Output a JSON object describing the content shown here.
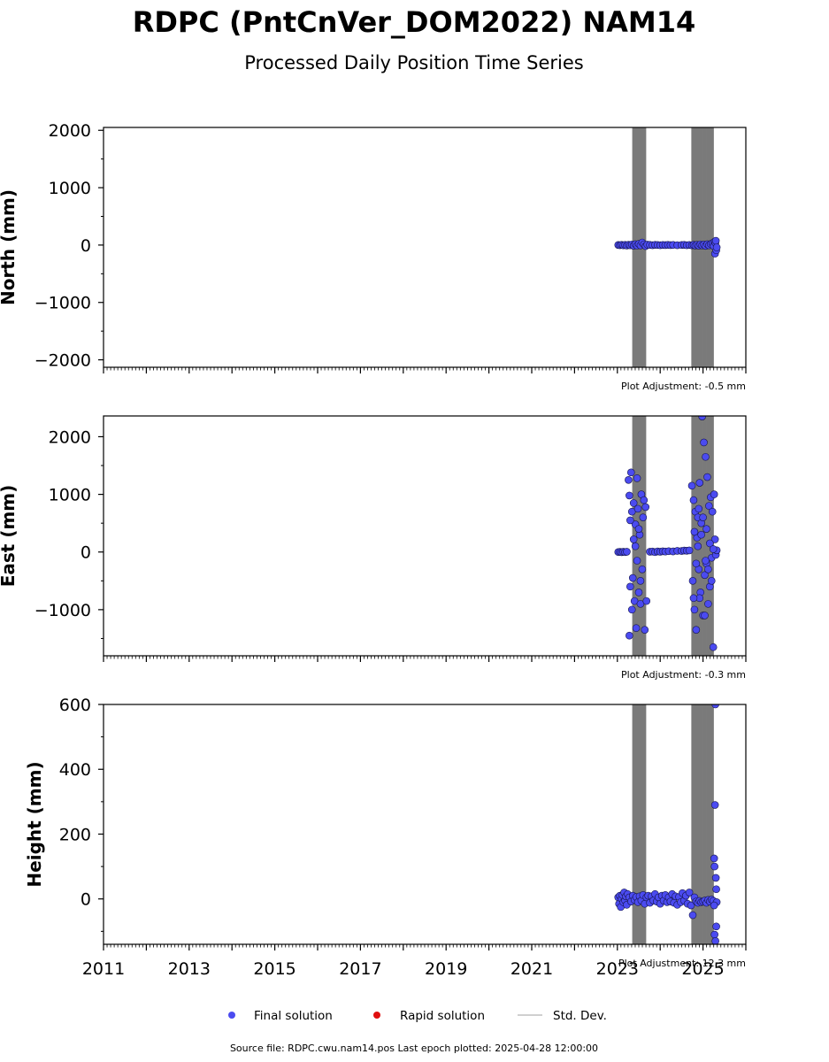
{
  "title": "RDPC (PntCnVer_DOM2022) NAM14",
  "subtitle": "Processed Daily Position Time Series",
  "source_text": "Source file: RDPC.cwu.nam14.pos  Last epoch plotted: 2025-04-28 12:00:00",
  "legend": {
    "final": "Final solution",
    "rapid": "Rapid solution",
    "std": "Std. Dev."
  },
  "colors": {
    "final": "#4b4bf0",
    "rapid": "#e01010",
    "std": "#d0d0d0",
    "band": "#6a6a6a"
  },
  "chart_data": {
    "type": "scatter",
    "xlim": [
      2011.0,
      2026.0
    ],
    "x_ticks": [
      2011,
      2013,
      2015,
      2017,
      2019,
      2021,
      2023,
      2025
    ],
    "x_tick_labels": [
      "2011",
      "2013",
      "2015",
      "2017",
      "2019",
      "2021",
      "2023",
      "2025"
    ],
    "panels": [
      {
        "id": "north",
        "ylabel": "North (mm)",
        "ylim": [
          -2130,
          2050
        ],
        "yticks": [
          -2000,
          -1000,
          0,
          1000,
          2000
        ],
        "ytick_labels": [
          "−2000",
          "−1000",
          "0",
          "1000",
          "2000"
        ],
        "adjustment": "Plot Adjustment: -0.5 mm",
        "points": [
          [
            2023.02,
            2
          ],
          [
            2023.06,
            -3
          ],
          [
            2023.1,
            4
          ],
          [
            2023.14,
            -5
          ],
          [
            2023.18,
            3
          ],
          [
            2023.22,
            -8
          ],
          [
            2023.26,
            6
          ],
          [
            2023.3,
            -4
          ],
          [
            2023.34,
            10
          ],
          [
            2023.38,
            -12
          ],
          [
            2023.42,
            15
          ],
          [
            2023.46,
            -9
          ],
          [
            2023.5,
            20
          ],
          [
            2023.54,
            -6
          ],
          [
            2023.58,
            45
          ],
          [
            2023.62,
            12
          ],
          [
            2023.66,
            -18
          ],
          [
            2023.7,
            8
          ],
          [
            2023.76,
            3
          ],
          [
            2023.82,
            -2
          ],
          [
            2023.88,
            4
          ],
          [
            2023.94,
            1
          ],
          [
            2024.0,
            -3
          ],
          [
            2024.06,
            2
          ],
          [
            2024.12,
            0
          ],
          [
            2024.18,
            3
          ],
          [
            2024.24,
            -1
          ],
          [
            2024.3,
            2
          ],
          [
            2024.4,
            -2
          ],
          [
            2024.5,
            1
          ],
          [
            2024.56,
            4
          ],
          [
            2024.62,
            -3
          ],
          [
            2024.68,
            2
          ],
          [
            2024.74,
            -4
          ],
          [
            2024.78,
            5
          ],
          [
            2024.82,
            -8
          ],
          [
            2024.86,
            6
          ],
          [
            2024.9,
            -10
          ],
          [
            2024.94,
            12
          ],
          [
            2024.98,
            -6
          ],
          [
            2025.02,
            9
          ],
          [
            2025.06,
            -14
          ],
          [
            2025.1,
            15
          ],
          [
            2025.14,
            -4
          ],
          [
            2025.18,
            20
          ],
          [
            2025.22,
            35
          ],
          [
            2025.25,
            -20
          ],
          [
            2025.27,
            60
          ],
          [
            2025.28,
            -150
          ],
          [
            2025.29,
            40
          ],
          [
            2025.3,
            75
          ],
          [
            2025.31,
            -90
          ],
          [
            2025.32,
            -40
          ]
        ]
      },
      {
        "id": "east",
        "ylabel": "East (mm)",
        "ylim": [
          -1800,
          2360
        ],
        "yticks": [
          -1000,
          0,
          1000,
          2000
        ],
        "ytick_labels": [
          "−1000",
          "0",
          "1000",
          "2000"
        ],
        "adjustment": "Plot Adjustment: -0.3 mm",
        "points": [
          [
            2023.02,
            0
          ],
          [
            2023.06,
            2
          ],
          [
            2023.1,
            -3
          ],
          [
            2023.14,
            4
          ],
          [
            2023.18,
            -2
          ],
          [
            2023.22,
            5
          ],
          [
            2023.26,
            1250
          ],
          [
            2023.28,
            980
          ],
          [
            2023.3,
            -600
          ],
          [
            2023.32,
            1380
          ],
          [
            2023.34,
            700
          ],
          [
            2023.36,
            -450
          ],
          [
            2023.38,
            220
          ],
          [
            2023.4,
            -850
          ],
          [
            2023.42,
            480
          ],
          [
            2023.44,
            -1320
          ],
          [
            2023.46,
            1280
          ],
          [
            2023.48,
            750
          ],
          [
            2023.5,
            -700
          ],
          [
            2023.52,
            300
          ],
          [
            2023.54,
            -900
          ],
          [
            2023.56,
            1000
          ],
          [
            2023.58,
            -300
          ],
          [
            2023.6,
            600
          ],
          [
            2023.62,
            900
          ],
          [
            2023.64,
            -1350
          ],
          [
            2023.66,
            780
          ],
          [
            2023.68,
            -850
          ],
          [
            2023.3,
            550
          ],
          [
            2023.34,
            -1000
          ],
          [
            2023.38,
            850
          ],
          [
            2023.42,
            100
          ],
          [
            2023.46,
            -150
          ],
          [
            2023.5,
            400
          ],
          [
            2023.54,
            -500
          ],
          [
            2023.28,
            -1450
          ],
          [
            2023.76,
            5
          ],
          [
            2023.82,
            8
          ],
          [
            2023.88,
            -2
          ],
          [
            2023.94,
            10
          ],
          [
            2024.0,
            5
          ],
          [
            2024.06,
            12
          ],
          [
            2024.12,
            8
          ],
          [
            2024.2,
            15
          ],
          [
            2024.3,
            10
          ],
          [
            2024.4,
            20
          ],
          [
            2024.5,
            18
          ],
          [
            2024.56,
            25
          ],
          [
            2024.62,
            22
          ],
          [
            2024.68,
            28
          ],
          [
            2024.74,
            1150
          ],
          [
            2024.76,
            -500
          ],
          [
            2024.78,
            900
          ],
          [
            2024.8,
            -1000
          ],
          [
            2024.82,
            700
          ],
          [
            2024.84,
            -1350
          ],
          [
            2024.86,
            250
          ],
          [
            2024.88,
            600
          ],
          [
            2024.9,
            -300
          ],
          [
            2024.92,
            1200
          ],
          [
            2024.94,
            -700
          ],
          [
            2024.96,
            500
          ],
          [
            2024.98,
            2350
          ],
          [
            2025.0,
            -1100
          ],
          [
            2025.02,
            1900
          ],
          [
            2025.04,
            -400
          ],
          [
            2025.06,
            1650
          ],
          [
            2025.08,
            -200
          ],
          [
            2025.1,
            1300
          ],
          [
            2025.12,
            -900
          ],
          [
            2025.14,
            800
          ],
          [
            2025.16,
            -600
          ],
          [
            2025.18,
            950
          ],
          [
            2025.2,
            -100
          ],
          [
            2025.22,
            700
          ],
          [
            2025.24,
            -1650
          ],
          [
            2025.26,
            1000
          ],
          [
            2025.28,
            220
          ],
          [
            2025.3,
            -50
          ],
          [
            2025.32,
            30
          ],
          [
            2024.8,
            350
          ],
          [
            2024.84,
            -200
          ],
          [
            2024.88,
            100
          ],
          [
            2024.92,
            -800
          ],
          [
            2024.96,
            300
          ],
          [
            2025.0,
            600
          ],
          [
            2025.04,
            -1100
          ],
          [
            2025.08,
            400
          ],
          [
            2025.12,
            -300
          ],
          [
            2025.16,
            150
          ],
          [
            2025.2,
            -500
          ],
          [
            2025.24,
            50
          ],
          [
            2024.78,
            -800
          ],
          [
            2024.9,
            750
          ],
          [
            2025.06,
            -150
          ]
        ]
      },
      {
        "id": "height",
        "ylabel": "Height (mm)",
        "ylim": [
          -140,
          600
        ],
        "yticks": [
          0,
          200,
          400,
          600
        ],
        "ytick_labels": [
          "0",
          "200",
          "400",
          "600"
        ],
        "adjustment": "Plot Adjustment: 12.3 mm",
        "points": [
          [
            2023.02,
            5
          ],
          [
            2023.04,
            -15
          ],
          [
            2023.06,
            10
          ],
          [
            2023.08,
            -25
          ],
          [
            2023.1,
            0
          ],
          [
            2023.12,
            12
          ],
          [
            2023.14,
            -10
          ],
          [
            2023.16,
            20
          ],
          [
            2023.18,
            -5
          ],
          [
            2023.2,
            8
          ],
          [
            2023.22,
            -18
          ],
          [
            2023.24,
            15
          ],
          [
            2023.28,
            5
          ],
          [
            2023.32,
            -8
          ],
          [
            2023.36,
            10
          ],
          [
            2023.4,
            -3
          ],
          [
            2023.44,
            6
          ],
          [
            2023.48,
            -10
          ],
          [
            2023.52,
            8
          ],
          [
            2023.56,
            -5
          ],
          [
            2023.6,
            12
          ],
          [
            2023.64,
            -15
          ],
          [
            2023.68,
            5
          ],
          [
            2023.72,
            10
          ],
          [
            2023.76,
            -12
          ],
          [
            2023.8,
            8
          ],
          [
            2023.84,
            -5
          ],
          [
            2023.88,
            15
          ],
          [
            2023.92,
            -8
          ],
          [
            2023.96,
            5
          ],
          [
            2024.0,
            -15
          ],
          [
            2024.04,
            10
          ],
          [
            2024.08,
            -5
          ],
          [
            2024.12,
            12
          ],
          [
            2024.16,
            -10
          ],
          [
            2024.2,
            5
          ],
          [
            2024.24,
            -8
          ],
          [
            2024.28,
            15
          ],
          [
            2024.32,
            -12
          ],
          [
            2024.36,
            8
          ],
          [
            2024.4,
            -18
          ],
          [
            2024.44,
            6
          ],
          [
            2024.48,
            -10
          ],
          [
            2024.52,
            18
          ],
          [
            2024.56,
            -5
          ],
          [
            2024.6,
            10
          ],
          [
            2024.64,
            -15
          ],
          [
            2024.68,
            20
          ],
          [
            2024.72,
            -20
          ],
          [
            2024.76,
            -50
          ],
          [
            2024.8,
            5
          ],
          [
            2024.84,
            -8
          ],
          [
            2024.88,
            -12
          ],
          [
            2024.92,
            -6
          ],
          [
            2024.96,
            -10
          ],
          [
            2025.0,
            -8
          ],
          [
            2025.04,
            -5
          ],
          [
            2025.08,
            -12
          ],
          [
            2025.12,
            -3
          ],
          [
            2025.16,
            -8
          ],
          [
            2025.2,
            -2
          ],
          [
            2025.24,
            -6
          ],
          [
            2025.26,
            125
          ],
          [
            2025.27,
            100
          ],
          [
            2025.28,
            290
          ],
          [
            2025.29,
            600
          ],
          [
            2025.3,
            65
          ],
          [
            2025.31,
            30
          ],
          [
            2025.32,
            -10
          ],
          [
            2025.27,
            -110
          ],
          [
            2025.29,
            -130
          ],
          [
            2025.31,
            -85
          ],
          [
            2025.26,
            -20
          ]
        ]
      }
    ],
    "bands": [
      [
        2023.35,
        2023.67
      ],
      [
        2024.73,
        2025.25
      ]
    ]
  }
}
